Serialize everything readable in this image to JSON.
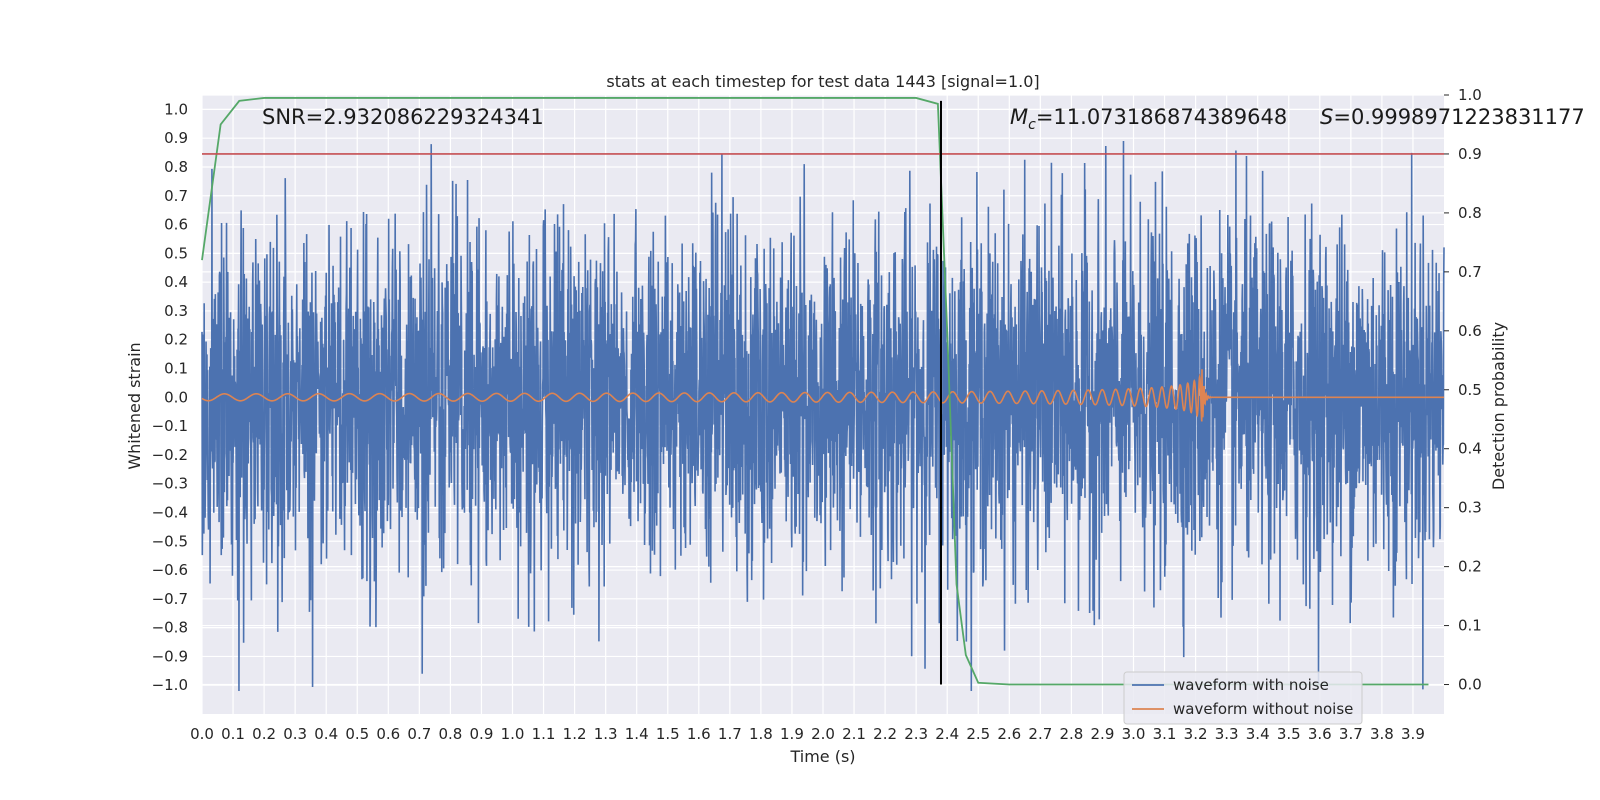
{
  "chart_data": {
    "type": "line",
    "title": "stats at each timestep for test data 1443 [signal=1.0]",
    "xlabel": "Time (s)",
    "ylabel": "Whitened strain",
    "y2label": "Detection probability",
    "xlim": [
      0.0,
      4.0
    ],
    "ylim": [
      -1.1,
      1.05
    ],
    "y2lim": [
      -0.05,
      1.0
    ],
    "x_ticks": [
      "0.0",
      "0.1",
      "0.2",
      "0.3",
      "0.4",
      "0.5",
      "0.6",
      "0.7",
      "0.8",
      "0.9",
      "1.0",
      "1.1",
      "1.2",
      "1.3",
      "1.4",
      "1.5",
      "1.6",
      "1.7",
      "1.8",
      "1.9",
      "2.0",
      "2.1",
      "2.2",
      "2.3",
      "2.4",
      "2.5",
      "2.6",
      "2.7",
      "2.8",
      "2.9",
      "3.0",
      "3.1",
      "3.2",
      "3.3",
      "3.4",
      "3.5",
      "3.6",
      "3.7",
      "3.8",
      "3.9"
    ],
    "y_ticks": [
      "1.0",
      "0.9",
      "0.8",
      "0.7",
      "0.6",
      "0.5",
      "0.4",
      "0.3",
      "0.2",
      "0.1",
      "0.0",
      "−0.1",
      "−0.2",
      "−0.3",
      "−0.4",
      "−0.5",
      "−0.6",
      "−0.7",
      "−0.8",
      "−0.9",
      "−1.0"
    ],
    "y2_ticks": [
      "1.0",
      "0.9",
      "0.8",
      "0.7",
      "0.6",
      "0.5",
      "0.4",
      "0.3",
      "0.2",
      "0.1",
      "0.0"
    ],
    "threshold": {
      "axis": "y2",
      "value": 0.9,
      "color": "#c44e52"
    },
    "vline": {
      "x": 2.38,
      "y2_from": 0.0,
      "y2_to": 0.99,
      "color": "#000000"
    },
    "annotations": {
      "snr": "SNR=2.932086229324341",
      "mc_symbol": "M",
      "mc_sub": "c",
      "mc_value": "=11.073186874389648",
      "s_symbol": "S",
      "s_value": "=0.9998971223831177"
    },
    "series": [
      {
        "name": "waveform with noise",
        "axis": "y",
        "color": "#4c72b0",
        "kind": "noise",
        "amplitude_envelope": 0.95,
        "n_points": 4000
      },
      {
        "name": "waveform without noise",
        "axis": "y",
        "color": "#dd8452",
        "kind": "chirp",
        "t_merger": 3.22,
        "peak_amplitude": 0.12
      },
      {
        "name": "detection probability",
        "axis": "y2",
        "color": "#55a868",
        "kind": "probability",
        "x": [
          0.0,
          0.06,
          0.12,
          0.2,
          0.5,
          1.0,
          1.5,
          2.0,
          2.3,
          2.37,
          2.4,
          2.43,
          2.46,
          2.5,
          2.6,
          3.0,
          3.5,
          3.95
        ],
        "values": [
          0.72,
          0.95,
          0.99,
          0.995,
          0.995,
          0.995,
          0.995,
          0.995,
          0.995,
          0.985,
          0.6,
          0.17,
          0.05,
          0.003,
          0.0,
          0.0,
          0.0,
          0.0
        ]
      }
    ],
    "legend": {
      "position": "lower-right",
      "entries": [
        {
          "label": "waveform with noise",
          "color": "#4c72b0"
        },
        {
          "label": "waveform without noise",
          "color": "#dd8452"
        }
      ]
    }
  }
}
